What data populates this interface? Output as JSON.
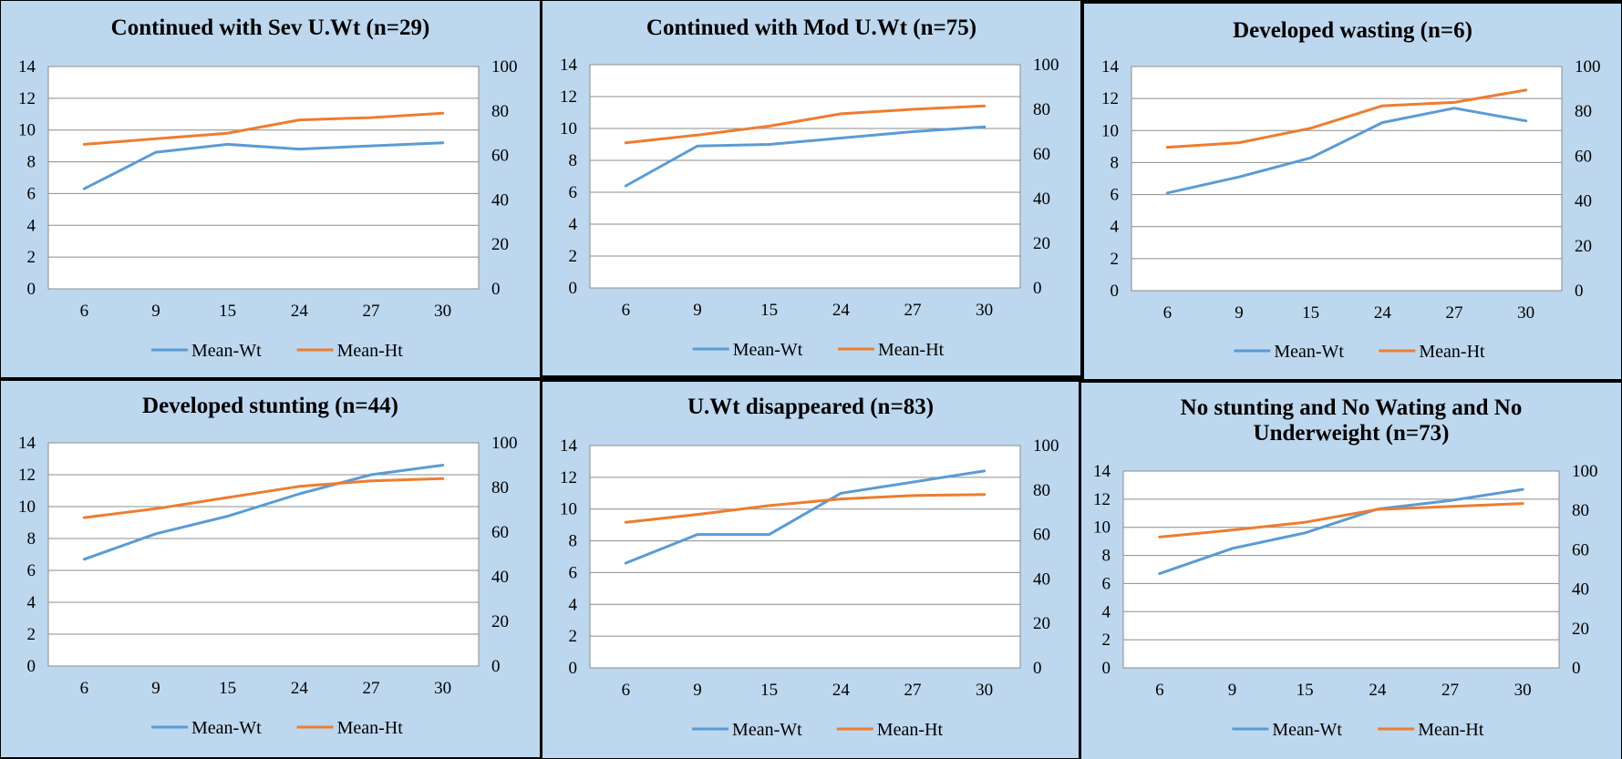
{
  "chart_data": [
    {
      "type": "line",
      "title": "Continued with Sev U.Wt (n=29)",
      "categories": [
        "6",
        "9",
        "15",
        "24",
        "27",
        "30"
      ],
      "series": [
        {
          "name": "Mean-Wt",
          "axis": "left",
          "color": "#5b9bd5",
          "values": [
            6.3,
            8.6,
            9.1,
            8.8,
            9.0,
            9.2
          ]
        },
        {
          "name": "Mean-Ht",
          "axis": "right",
          "color": "#ed7d31",
          "values": [
            65,
            67.5,
            70,
            76,
            77,
            79
          ]
        }
      ],
      "ylim_left": [
        0,
        14
      ],
      "yticks_left": [
        0,
        2,
        4,
        6,
        8,
        10,
        12,
        14
      ],
      "ylim_right": [
        0,
        100
      ],
      "yticks_right": [
        0,
        20,
        40,
        60,
        80,
        100
      ],
      "grid": true,
      "legend": "bottom"
    },
    {
      "type": "line",
      "title": "Continued with Mod U.Wt (n=75)",
      "categories": [
        "6",
        "9",
        "15",
        "24",
        "27",
        "30"
      ],
      "series": [
        {
          "name": "Mean-Wt",
          "axis": "left",
          "color": "#5b9bd5",
          "values": [
            6.4,
            8.9,
            9.0,
            9.4,
            9.8,
            10.1
          ]
        },
        {
          "name": "Mean-Ht",
          "axis": "right",
          "color": "#ed7d31",
          "values": [
            65,
            68.5,
            72.5,
            78,
            80,
            81.5
          ]
        }
      ],
      "ylim_left": [
        0,
        14
      ],
      "yticks_left": [
        0,
        2,
        4,
        6,
        8,
        10,
        12,
        14
      ],
      "ylim_right": [
        0,
        100
      ],
      "yticks_right": [
        0,
        20,
        40,
        60,
        80,
        100
      ],
      "grid": true,
      "legend": "bottom"
    },
    {
      "type": "line",
      "title": "Developed wasting (n=6)",
      "categories": [
        "6",
        "9",
        "15",
        "24",
        "27",
        "30"
      ],
      "series": [
        {
          "name": "Mean-Wt",
          "axis": "left",
          "color": "#5b9bd5",
          "values": [
            6.1,
            7.1,
            8.3,
            10.5,
            11.4,
            10.6
          ]
        },
        {
          "name": "Mean-Ht",
          "axis": "right",
          "color": "#ed7d31",
          "values": [
            64,
            66,
            72.5,
            82.5,
            84,
            89.5
          ]
        }
      ],
      "ylim_left": [
        0,
        14
      ],
      "yticks_left": [
        0,
        2,
        4,
        6,
        8,
        10,
        12,
        14
      ],
      "ylim_right": [
        0,
        100
      ],
      "yticks_right": [
        0,
        20,
        40,
        60,
        80,
        100
      ],
      "grid": true,
      "legend": "bottom"
    },
    {
      "type": "line",
      "title": "Developed stunting (n=44)",
      "categories": [
        "6",
        "9",
        "15",
        "24",
        "27",
        "30"
      ],
      "series": [
        {
          "name": "Mean-Wt",
          "axis": "left",
          "color": "#5b9bd5",
          "values": [
            6.7,
            8.3,
            9.4,
            10.8,
            12.0,
            12.6
          ]
        },
        {
          "name": "Mean-Ht",
          "axis": "right",
          "color": "#ed7d31",
          "values": [
            66.5,
            70.5,
            75.5,
            80.5,
            83,
            84
          ]
        }
      ],
      "ylim_left": [
        0,
        14
      ],
      "yticks_left": [
        0,
        2,
        4,
        6,
        8,
        10,
        12,
        14
      ],
      "ylim_right": [
        0,
        100
      ],
      "yticks_right": [
        0,
        20,
        40,
        60,
        80,
        100
      ],
      "grid": true,
      "legend": "bottom"
    },
    {
      "type": "line",
      "title": "U.Wt disappeared  (n=83)",
      "categories": [
        "6",
        "9",
        "15",
        "24",
        "27",
        "30"
      ],
      "series": [
        {
          "name": "Mean-Wt",
          "axis": "left",
          "color": "#5b9bd5",
          "values": [
            6.6,
            8.4,
            8.4,
            11.0,
            11.7,
            12.4
          ]
        },
        {
          "name": "Mean-Ht",
          "axis": "right",
          "color": "#ed7d31",
          "values": [
            65.5,
            69,
            73,
            76,
            77.5,
            78
          ]
        }
      ],
      "ylim_left": [
        0,
        14
      ],
      "yticks_left": [
        0,
        2,
        4,
        6,
        8,
        10,
        12,
        14
      ],
      "ylim_right": [
        0,
        100
      ],
      "yticks_right": [
        0,
        20,
        40,
        60,
        80,
        100
      ],
      "grid": true,
      "legend": "bottom"
    },
    {
      "type": "line",
      "title": "No stunting and No Wating and No Underweight (n=73)",
      "categories": [
        "6",
        "9",
        "15",
        "24",
        "27",
        "30"
      ],
      "series": [
        {
          "name": "Mean-Wt",
          "axis": "left",
          "color": "#5b9bd5",
          "values": [
            6.7,
            8.5,
            9.6,
            11.3,
            11.9,
            12.7
          ]
        },
        {
          "name": "Mean-Ht",
          "axis": "right",
          "color": "#ed7d31",
          "values": [
            66.5,
            70,
            74,
            80.5,
            82,
            83.5
          ]
        }
      ],
      "ylim_left": [
        0,
        14
      ],
      "yticks_left": [
        0,
        2,
        4,
        6,
        8,
        10,
        12,
        14
      ],
      "ylim_right": [
        0,
        100
      ],
      "yticks_right": [
        0,
        20,
        40,
        60,
        80,
        100
      ],
      "grid": true,
      "legend": "bottom"
    }
  ]
}
